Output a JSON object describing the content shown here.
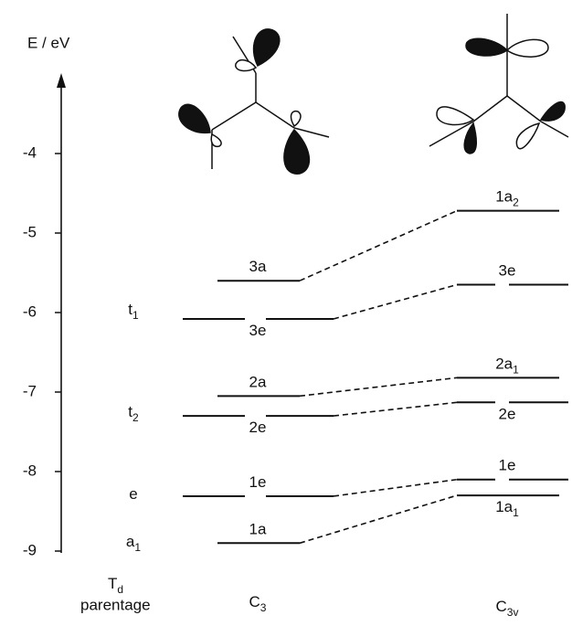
{
  "axis": {
    "label": "E / eV",
    "ticks": [
      -4,
      -5,
      -6,
      -7,
      -8,
      -9
    ]
  },
  "parentage": {
    "symbol": {
      "text": "T",
      "sub": "d"
    },
    "caption": "parentage",
    "labels": [
      {
        "text": "t",
        "sub": "1"
      },
      {
        "text": "t",
        "sub": "2"
      },
      {
        "text": "e",
        "sub": ""
      },
      {
        "text": "a",
        "sub": "1"
      }
    ]
  },
  "columns": [
    {
      "label": {
        "text": "C",
        "sub": "3"
      },
      "levels": [
        {
          "text": "3a",
          "sub": "",
          "energy": -5.6
        },
        {
          "text": "3e",
          "sub": "",
          "energy": -6.08
        },
        {
          "text": "2a",
          "sub": "",
          "energy": -7.05
        },
        {
          "text": "2e",
          "sub": "",
          "energy": -7.3
        },
        {
          "text": "1e",
          "sub": "",
          "energy": -8.31
        },
        {
          "text": "1a",
          "sub": "",
          "energy": -8.9
        }
      ]
    },
    {
      "label": {
        "text": "C",
        "sub": "3v"
      },
      "levels": [
        {
          "text": "1a",
          "sub": "2",
          "energy": -4.72
        },
        {
          "text": "3e",
          "sub": "",
          "energy": -5.65
        },
        {
          "text": "2a",
          "sub": "1",
          "energy": -6.82
        },
        {
          "text": "2e",
          "sub": "",
          "energy": -7.13
        },
        {
          "text": "1e",
          "sub": "",
          "energy": -8.1
        },
        {
          "text": "1a",
          "sub": "1",
          "energy": -8.3
        }
      ]
    }
  ]
}
